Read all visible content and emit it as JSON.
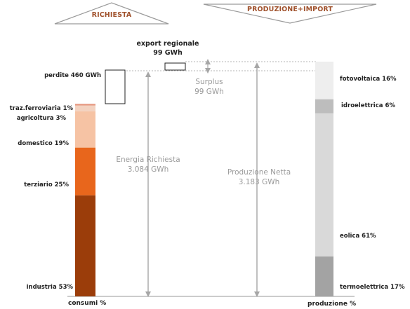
{
  "headers": {
    "left": "RICHIESTA",
    "right": "PRODUZIONE+IMPORT"
  },
  "export": {
    "title": "export regionale",
    "value": "99 GWh"
  },
  "surplus": {
    "title": "Surplus",
    "value": "99 GWh"
  },
  "energia_richiesta": {
    "title": "Energia Richiesta",
    "value": "3.084 GWh"
  },
  "produzione_netta": {
    "title": "Produzione Netta",
    "value": "3.183 GWh"
  },
  "perdite_label": "perdite 460 GWh",
  "consumi": {
    "axis_label": "consumi %",
    "segments": [
      {
        "label": "industria 53%",
        "share": 53,
        "color": "#9b3d0a"
      },
      {
        "label": "terziario 25%",
        "share": 25,
        "color": "#e8661c"
      },
      {
        "label": "domestico 19%",
        "share": 19,
        "color": "#f6c3a4"
      },
      {
        "label": "agricoltura 3%",
        "share": 3,
        "color": "#f3d2c0"
      },
      {
        "label": "traz.ferroviaria 1%",
        "share": 1,
        "color": "#e8a08a"
      }
    ]
  },
  "produzione": {
    "axis_label": "produzione %",
    "segments": [
      {
        "label": "termoelettrica 17%",
        "share": 17,
        "color": "#a3a3a3"
      },
      {
        "label": "eolica 61%",
        "share": 61,
        "color": "#d9d9d9"
      },
      {
        "label": "idroelettrica 6%",
        "share": 6,
        "color": "#bdbdbd"
      },
      {
        "label": "fotovoltaica 16%",
        "share": 16,
        "color": "#eeeeee"
      }
    ]
  }
}
